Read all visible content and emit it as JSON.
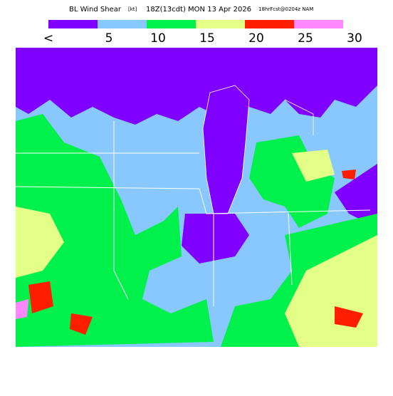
{
  "header": {
    "title": "BL Wind Shear",
    "units": "[kt]",
    "valid_time": "18Z(13cdt) MON 13 Apr 2026",
    "forecast": "18hrFcst@0204z NAM"
  },
  "legend": {
    "colors": [
      "#8000ff",
      "#88c8ff",
      "#00f04c",
      "#e4ff88",
      "#ff1e00",
      "#ff88ff"
    ],
    "labels": [
      "<",
      "5",
      "10",
      "15",
      "20",
      "25",
      "30"
    ]
  }
}
